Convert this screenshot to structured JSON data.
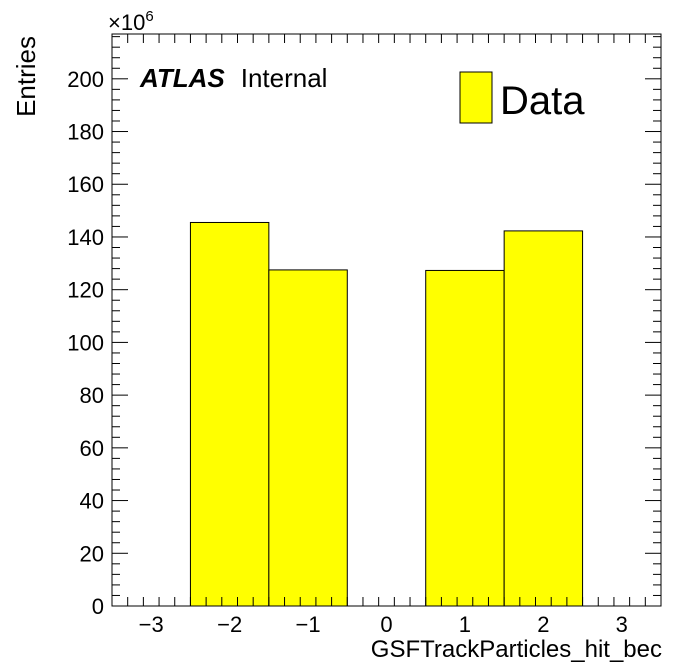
{
  "chart_data": {
    "type": "bar",
    "histogram": true,
    "bin_edges": [
      -2.5,
      -1.5,
      -0.5,
      0.5,
      1.5,
      2.5
    ],
    "values": [
      145.5,
      127.5,
      0,
      127.3,
      142.3
    ],
    "x": [
      -2,
      -1,
      0,
      1,
      2
    ],
    "xlim": [
      -3.5,
      3.5
    ],
    "ylim": [
      0,
      217
    ],
    "x_ticks": [
      -3,
      -2,
      -1,
      0,
      1,
      2,
      3
    ],
    "x_tick_labels": [
      "−3",
      "−2",
      "−1",
      "0",
      "1",
      "2",
      "3"
    ],
    "y_ticks": [
      0,
      20,
      40,
      60,
      80,
      100,
      120,
      140,
      160,
      180,
      200
    ],
    "y_tick_labels": [
      "0",
      "20",
      "40",
      "60",
      "80",
      "100",
      "120",
      "140",
      "160",
      "180",
      "200"
    ],
    "y_multiplier": "×10",
    "y_multiplier_exponent": "6",
    "xlabel": "GSFTrackParticles_hit_bec",
    "ylabel": "Entries",
    "annotation_bold": "ATLAS",
    "annotation": "Internal",
    "legend": [
      {
        "label": "Data",
        "color": "#ffff00"
      }
    ],
    "legend_position": "top-right",
    "bar_color": "#ffff00",
    "edge_color": "#000000",
    "grid": false
  }
}
